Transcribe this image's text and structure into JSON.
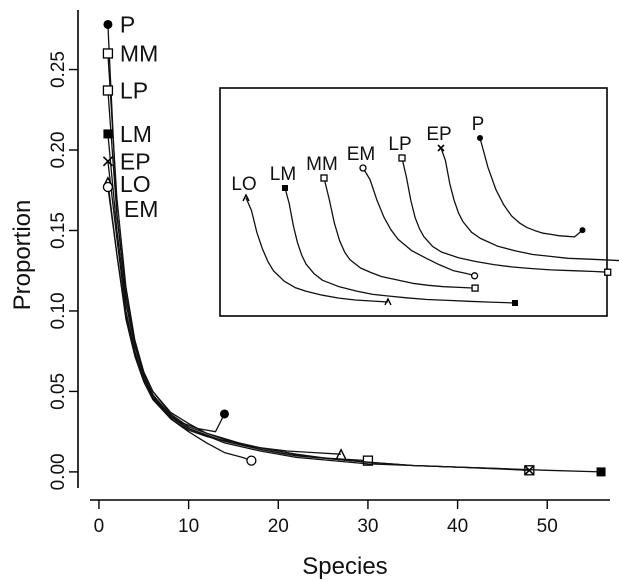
{
  "chart_data": {
    "type": "line",
    "title": "",
    "xlabel": "Species",
    "ylabel": "Proportion",
    "xlim": [
      -1,
      57
    ],
    "ylim": [
      -0.01,
      0.287
    ],
    "x_ticks": [
      0,
      10,
      20,
      30,
      40,
      50
    ],
    "x_tick_labels": [
      "0",
      "10",
      "20",
      "30",
      "40",
      "50"
    ],
    "y_ticks": [
      0,
      0.05,
      0.1,
      0.15,
      0.2,
      0.25
    ],
    "y_tick_labels": [
      "0.00",
      "0.05",
      "0.10",
      "0.15",
      "0.20",
      "0.25"
    ],
    "grid": false,
    "legend": "none",
    "series": [
      {
        "name": "P",
        "marker": "filled-circle",
        "x": [
          1,
          2,
          3,
          4,
          5,
          6,
          7,
          8,
          9,
          10,
          11,
          12,
          13,
          14
        ],
        "y": [
          0.278,
          0.16,
          0.11,
          0.08,
          0.06,
          0.048,
          0.04,
          0.035,
          0.031,
          0.029,
          0.027,
          0.026,
          0.025,
          0.036
        ]
      },
      {
        "name": "MM",
        "marker": "open-square",
        "x": [
          1,
          2,
          3,
          4,
          5,
          6,
          8,
          10,
          12,
          15,
          18,
          21,
          24,
          27,
          30
        ],
        "y": [
          0.26,
          0.17,
          0.115,
          0.082,
          0.062,
          0.05,
          0.037,
          0.03,
          0.024,
          0.019,
          0.014,
          0.011,
          0.009,
          0.008,
          0.007
        ]
      },
      {
        "name": "LP",
        "marker": "open-square",
        "x": [
          1,
          2,
          3,
          4,
          5,
          6,
          8,
          10,
          14,
          18,
          22,
          26,
          30,
          35,
          40,
          45,
          48
        ],
        "y": [
          0.237,
          0.16,
          0.11,
          0.08,
          0.062,
          0.05,
          0.036,
          0.028,
          0.02,
          0.015,
          0.011,
          0.008,
          0.006,
          0.004,
          0.003,
          0.002,
          0.001
        ]
      },
      {
        "name": "LM",
        "marker": "filled-square",
        "x": [
          1,
          2,
          3,
          4,
          5,
          6,
          8,
          10,
          14,
          18,
          22,
          26,
          30,
          35,
          40,
          45,
          50,
          56
        ],
        "y": [
          0.21,
          0.15,
          0.105,
          0.078,
          0.06,
          0.048,
          0.035,
          0.027,
          0.019,
          0.014,
          0.01,
          0.008,
          0.006,
          0.004,
          0.003,
          0.002,
          0.001,
          0.0
        ]
      },
      {
        "name": "EP",
        "marker": "x",
        "x": [
          1,
          2,
          3,
          4,
          5,
          6,
          8,
          10,
          14,
          18,
          22,
          26,
          30,
          35,
          40,
          44,
          48
        ],
        "y": [
          0.193,
          0.145,
          0.1,
          0.075,
          0.058,
          0.047,
          0.034,
          0.027,
          0.018,
          0.013,
          0.009,
          0.007,
          0.005,
          0.004,
          0.003,
          0.002,
          0.001
        ]
      },
      {
        "name": "LO",
        "marker": "open-triangle",
        "x": [
          1,
          2,
          3,
          4,
          5,
          6,
          8,
          10,
          12,
          15,
          18,
          21,
          24,
          27
        ],
        "y": [
          0.18,
          0.135,
          0.095,
          0.072,
          0.056,
          0.045,
          0.033,
          0.026,
          0.022,
          0.018,
          0.015,
          0.013,
          0.012,
          0.011
        ]
      },
      {
        "name": "EM",
        "marker": "open-circle",
        "x": [
          1,
          2,
          3,
          4,
          5,
          6,
          8,
          10,
          12,
          14,
          16,
          17
        ],
        "y": [
          0.177,
          0.135,
          0.097,
          0.073,
          0.057,
          0.046,
          0.033,
          0.025,
          0.018,
          0.012,
          0.009,
          0.007
        ]
      }
    ],
    "inset": {
      "description": "staggered copies of the same curves",
      "order": [
        "LO",
        "LM",
        "MM",
        "EM",
        "LP",
        "EP",
        "P"
      ]
    }
  }
}
